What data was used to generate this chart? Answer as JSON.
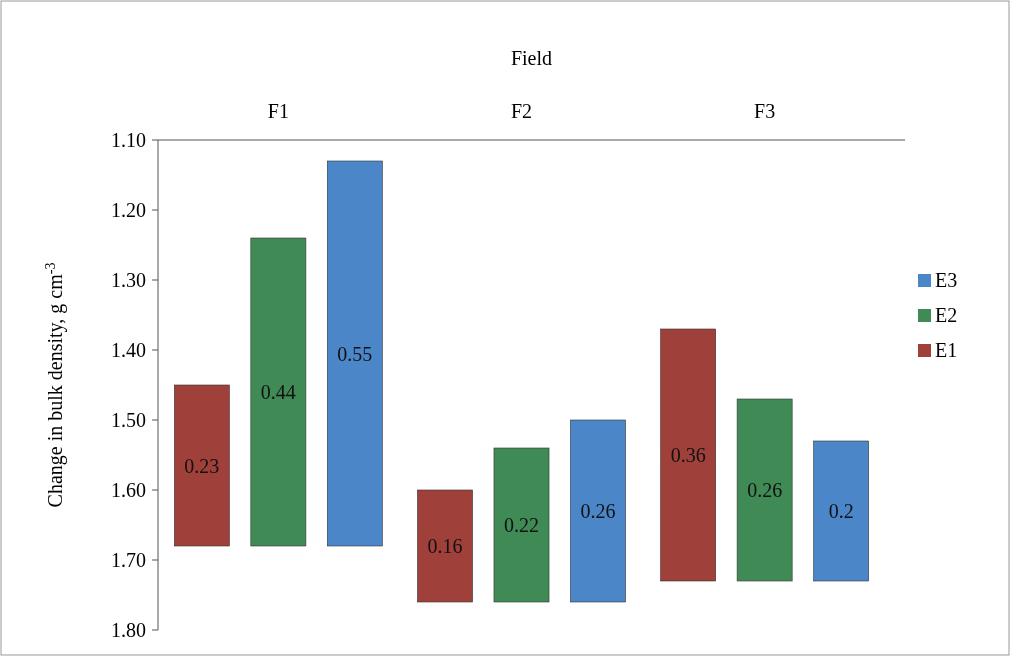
{
  "chart_data": {
    "type": "bar",
    "xlabel": "Field",
    "ylabel": "Change in bulk density, g cm$^{-3}$",
    "categories": [
      "F1",
      "F2",
      "F3"
    ],
    "ylim": [
      1.8,
      1.1
    ],
    "yticks": [
      {
        "value": 1.1,
        "label": "1.10"
      },
      {
        "value": 1.2,
        "label": "1.20"
      },
      {
        "value": 1.3,
        "label": "1.30"
      },
      {
        "value": 1.4,
        "label": "1.40"
      },
      {
        "value": 1.5,
        "label": "1.50"
      },
      {
        "value": 1.6,
        "label": "1.60"
      },
      {
        "value": 1.7,
        "label": "1.70"
      },
      {
        "value": 1.8,
        "label": "1.80"
      }
    ],
    "series": [
      {
        "name": "E1",
        "color": "#a0403a",
        "base": [
          1.45,
          1.6,
          1.37
        ],
        "values": [
          0.23,
          0.16,
          0.36
        ]
      },
      {
        "name": "E2",
        "color": "#3f8a55",
        "base": [
          1.24,
          1.54,
          1.47
        ],
        "values": [
          0.44,
          0.22,
          0.26
        ]
      },
      {
        "name": "E3",
        "color": "#4a86c8",
        "base": [
          1.13,
          1.5,
          1.53
        ],
        "values": [
          0.55,
          0.26,
          0.2
        ]
      }
    ],
    "data_labels": true,
    "legend": "right",
    "grid": false
  }
}
